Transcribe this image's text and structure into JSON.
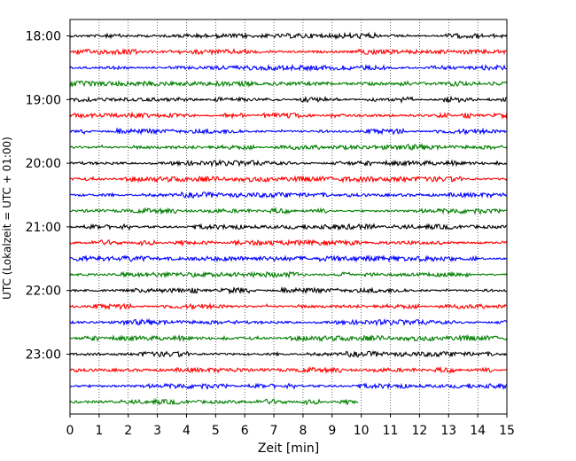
{
  "chart_data": {
    "type": "line",
    "title": "",
    "xlabel": "Zeit  [min]",
    "ylabel": "UTC (Lokalzeit = UTC + 01:00)",
    "xlim": [
      0,
      15
    ],
    "x_ticks": [
      0,
      1,
      2,
      3,
      4,
      5,
      6,
      7,
      8,
      9,
      10,
      11,
      12,
      13,
      14,
      15
    ],
    "x_tick_labels": [
      "0",
      "1",
      "2",
      "3",
      "4",
      "5",
      "6",
      "7",
      "8",
      "9",
      "10",
      "11",
      "12",
      "13",
      "14",
      "15"
    ],
    "y_tick_labels": [
      "18:00",
      "19:00",
      "20:00",
      "21:00",
      "22:00",
      "23:00"
    ],
    "grid": "vertical dotted",
    "row_colors": [
      "#000000",
      "#ff0000",
      "#0000ff",
      "#007f00"
    ],
    "rows": [
      {
        "start": "18:00",
        "x_end": 15
      },
      {
        "start": "18:15",
        "x_end": 15
      },
      {
        "start": "18:30",
        "x_end": 15
      },
      {
        "start": "18:45",
        "x_end": 15
      },
      {
        "start": "19:00",
        "x_end": 15
      },
      {
        "start": "19:15",
        "x_end": 15
      },
      {
        "start": "19:30",
        "x_end": 15
      },
      {
        "start": "19:45",
        "x_end": 15
      },
      {
        "start": "20:00",
        "x_end": 15
      },
      {
        "start": "20:15",
        "x_end": 15
      },
      {
        "start": "20:30",
        "x_end": 15
      },
      {
        "start": "20:45",
        "x_end": 15
      },
      {
        "start": "21:00",
        "x_end": 15
      },
      {
        "start": "21:15",
        "x_end": 15
      },
      {
        "start": "21:30",
        "x_end": 15
      },
      {
        "start": "21:45",
        "x_end": 15
      },
      {
        "start": "22:00",
        "x_end": 15
      },
      {
        "start": "22:15",
        "x_end": 15
      },
      {
        "start": "22:30",
        "x_end": 15
      },
      {
        "start": "22:45",
        "x_end": 15
      },
      {
        "start": "23:00",
        "x_end": 15
      },
      {
        "start": "23:15",
        "x_end": 15
      },
      {
        "start": "23:30",
        "x_end": 15
      },
      {
        "start": "23:45",
        "x_end": 9.9
      }
    ]
  }
}
